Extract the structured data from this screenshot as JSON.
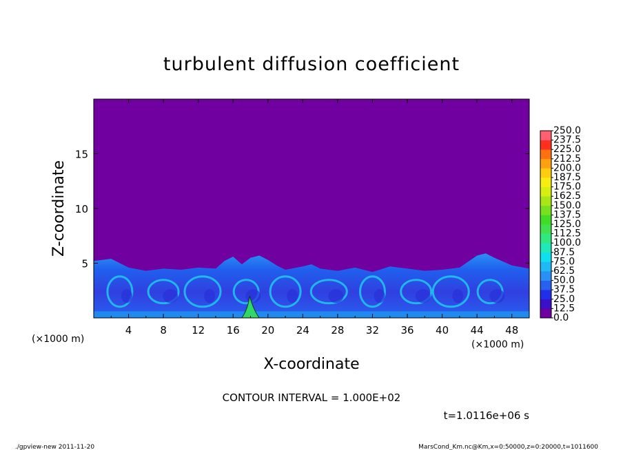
{
  "chart_data": {
    "type": "heatmap",
    "title": "turbulent diffusion coefficient",
    "xlabel": "X-coordinate",
    "ylabel": "Z-coordinate",
    "x_unit": "(×1000 m)",
    "z_unit": "(×1000 m)",
    "xlim": [
      0,
      50
    ],
    "ylim": [
      0,
      20
    ],
    "x_ticks": [
      4,
      8,
      12,
      16,
      20,
      24,
      28,
      32,
      36,
      40,
      44,
      48
    ],
    "y_ticks": [
      5,
      10,
      15
    ],
    "background_value": 0.0,
    "turbulent_layer": {
      "top_profile": [
        [
          0,
          5.2
        ],
        [
          2,
          5.4
        ],
        [
          4,
          4.6
        ],
        [
          6,
          4.3
        ],
        [
          8,
          4.5
        ],
        [
          10,
          4.4
        ],
        [
          12,
          4.6
        ],
        [
          14,
          4.5
        ],
        [
          15,
          5.2
        ],
        [
          16,
          5.6
        ],
        [
          17,
          4.9
        ],
        [
          18,
          5.5
        ],
        [
          19,
          5.7
        ],
        [
          20,
          5.3
        ],
        [
          21,
          4.8
        ],
        [
          22,
          4.4
        ],
        [
          24,
          4.7
        ],
        [
          25,
          4.9
        ],
        [
          26,
          4.5
        ],
        [
          28,
          4.3
        ],
        [
          30,
          4.6
        ],
        [
          32,
          4.2
        ],
        [
          34,
          4.7
        ],
        [
          36,
          4.5
        ],
        [
          38,
          4.3
        ],
        [
          40,
          4.4
        ],
        [
          42,
          4.6
        ],
        [
          44,
          5.7
        ],
        [
          45,
          5.9
        ],
        [
          46,
          5.5
        ],
        [
          48,
          4.8
        ],
        [
          50,
          4.5
        ]
      ],
      "peak_region": {
        "x": [
          17,
          19
        ],
        "z_max": 2.0
      }
    },
    "colorbar": {
      "levels": [
        "0.0",
        "12.5",
        "25.0",
        "37.5",
        "50.0",
        "62.5",
        "75.0",
        "87.5",
        "100.0",
        "112.5",
        "125.0",
        "137.5",
        "150.0",
        "162.5",
        "175.0",
        "187.5",
        "200.0",
        "212.5",
        "225.0",
        "237.5",
        "250.0"
      ],
      "colors": [
        "#7000a0",
        "#3a10c8",
        "#2030e8",
        "#2860f0",
        "#2a90f5",
        "#20b8f5",
        "#10e0ee",
        "#20e8b8",
        "#30e880",
        "#40e050",
        "#40dc28",
        "#78e020",
        "#a8e618",
        "#d6ee10",
        "#f6ee10",
        "#ffcc10",
        "#ffa010",
        "#ff7010",
        "#ff3020",
        "#ff6070"
      ]
    },
    "grid": false
  },
  "annotations": {
    "contour_interval": "CONTOUR INTERVAL = 1.000E+02",
    "time": "t=1.0116e+06 s"
  },
  "footer": {
    "left": "./gpview-new   2011-11-20",
    "right": "MarsCond_Km.nc@Km,x=0:50000,z=0:20000,t=1011600"
  }
}
